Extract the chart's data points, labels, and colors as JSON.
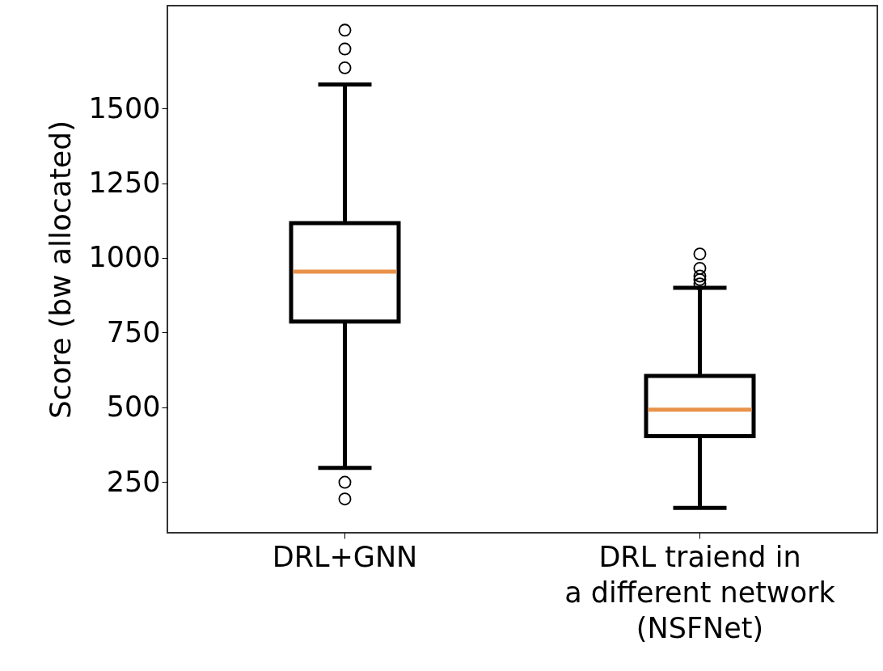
{
  "chart_data": {
    "type": "box",
    "ylabel": "Score (bw allocated)",
    "categories": [
      "DRL+GNN",
      "DRL traiend in\na different network\n(NSFNet)"
    ],
    "series": [
      {
        "color": "#000000",
        "boxes": [
          {
            "low": 297,
            "q1": 787,
            "median": 954,
            "q3": 1116,
            "high": 1580,
            "outliers": [
              1762,
              1699,
              1636,
              249,
              193
            ]
          },
          {
            "low": 163,
            "q1": 403,
            "median": 492,
            "q3": 605,
            "high": 900,
            "outliers": [
              1013,
              965,
              939,
              927,
              913
            ]
          }
        ]
      }
    ],
    "ylim": [
      80,
      1844
    ],
    "yticks": [
      250,
      500,
      750,
      1000,
      1250,
      1500
    ],
    "grid": false
  }
}
